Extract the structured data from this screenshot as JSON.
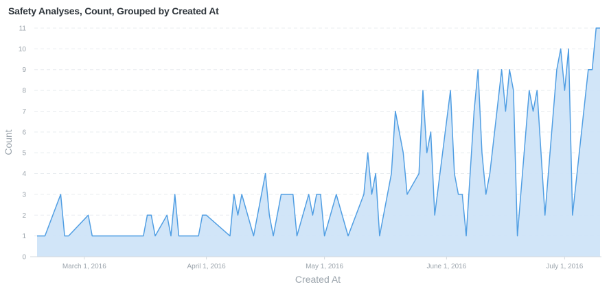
{
  "title": "Safety Analyses, Count, Grouped by Created At",
  "colors": {
    "line": "#509ee3",
    "area": "#cfe4f8",
    "grid": "#e8ecef",
    "tick_text": "#9aa3ab",
    "title_text": "#2e353b"
  },
  "chart_data": {
    "type": "area",
    "title": "Safety Analyses, Count, Grouped by Created At",
    "xlabel": "Created At",
    "ylabel": "Count",
    "xlim": [
      "2016-02-18",
      "2016-07-10"
    ],
    "ylim": [
      0,
      11
    ],
    "yticks": [
      0,
      1,
      2,
      3,
      4,
      5,
      6,
      7,
      8,
      9,
      10,
      11
    ],
    "xticks": [
      {
        "date": "2016-03-01",
        "label": "March 1, 2016"
      },
      {
        "date": "2016-04-01",
        "label": "April 1, 2016"
      },
      {
        "date": "2016-05-01",
        "label": "May 1, 2016"
      },
      {
        "date": "2016-06-01",
        "label": "June 1, 2016"
      },
      {
        "date": "2016-07-01",
        "label": "July 1, 2016"
      }
    ],
    "grid": true,
    "series": [
      {
        "points": [
          [
            "2016-02-18",
            1
          ],
          [
            "2016-02-20",
            1
          ],
          [
            "2016-02-24",
            3
          ],
          [
            "2016-02-25",
            1
          ],
          [
            "2016-02-26",
            1
          ],
          [
            "2016-03-02",
            2
          ],
          [
            "2016-03-03",
            1
          ],
          [
            "2016-03-16",
            1
          ],
          [
            "2016-03-17",
            2
          ],
          [
            "2016-03-18",
            2
          ],
          [
            "2016-03-19",
            1
          ],
          [
            "2016-03-22",
            2
          ],
          [
            "2016-03-23",
            1
          ],
          [
            "2016-03-24",
            3
          ],
          [
            "2016-03-25",
            1
          ],
          [
            "2016-03-30",
            1
          ],
          [
            "2016-03-31",
            2
          ],
          [
            "2016-04-01",
            2
          ],
          [
            "2016-04-07",
            1
          ],
          [
            "2016-04-08",
            3
          ],
          [
            "2016-04-09",
            2
          ],
          [
            "2016-04-10",
            3
          ],
          [
            "2016-04-13",
            1
          ],
          [
            "2016-04-16",
            4
          ],
          [
            "2016-04-17",
            2
          ],
          [
            "2016-04-18",
            1
          ],
          [
            "2016-04-20",
            3
          ],
          [
            "2016-04-23",
            3
          ],
          [
            "2016-04-24",
            1
          ],
          [
            "2016-04-27",
            3
          ],
          [
            "2016-04-28",
            2
          ],
          [
            "2016-04-29",
            3
          ],
          [
            "2016-04-30",
            3
          ],
          [
            "2016-05-01",
            1
          ],
          [
            "2016-05-04",
            3
          ],
          [
            "2016-05-07",
            1
          ],
          [
            "2016-05-11",
            3
          ],
          [
            "2016-05-12",
            5
          ],
          [
            "2016-05-13",
            3
          ],
          [
            "2016-05-14",
            4
          ],
          [
            "2016-05-15",
            1
          ],
          [
            "2016-05-18",
            4
          ],
          [
            "2016-05-19",
            7
          ],
          [
            "2016-05-21",
            5
          ],
          [
            "2016-05-22",
            3
          ],
          [
            "2016-05-25",
            4
          ],
          [
            "2016-05-26",
            8
          ],
          [
            "2016-05-27",
            5
          ],
          [
            "2016-05-28",
            6
          ],
          [
            "2016-05-29",
            2
          ],
          [
            "2016-06-02",
            8
          ],
          [
            "2016-06-03",
            4
          ],
          [
            "2016-06-04",
            3
          ],
          [
            "2016-06-05",
            3
          ],
          [
            "2016-06-06",
            1
          ],
          [
            "2016-06-08",
            7
          ],
          [
            "2016-06-09",
            9
          ],
          [
            "2016-06-10",
            5
          ],
          [
            "2016-06-11",
            3
          ],
          [
            "2016-06-12",
            4
          ],
          [
            "2016-06-15",
            9
          ],
          [
            "2016-06-16",
            7
          ],
          [
            "2016-06-17",
            9
          ],
          [
            "2016-06-18",
            8
          ],
          [
            "2016-06-19",
            1
          ],
          [
            "2016-06-22",
            8
          ],
          [
            "2016-06-23",
            7
          ],
          [
            "2016-06-24",
            8
          ],
          [
            "2016-06-26",
            2
          ],
          [
            "2016-06-29",
            9
          ],
          [
            "2016-06-30",
            10
          ],
          [
            "2016-07-01",
            8
          ],
          [
            "2016-07-02",
            10
          ],
          [
            "2016-07-03",
            2
          ],
          [
            "2016-07-07",
            9
          ],
          [
            "2016-07-08",
            9
          ],
          [
            "2016-07-09",
            11
          ],
          [
            "2016-07-10",
            11
          ]
        ]
      }
    ]
  }
}
